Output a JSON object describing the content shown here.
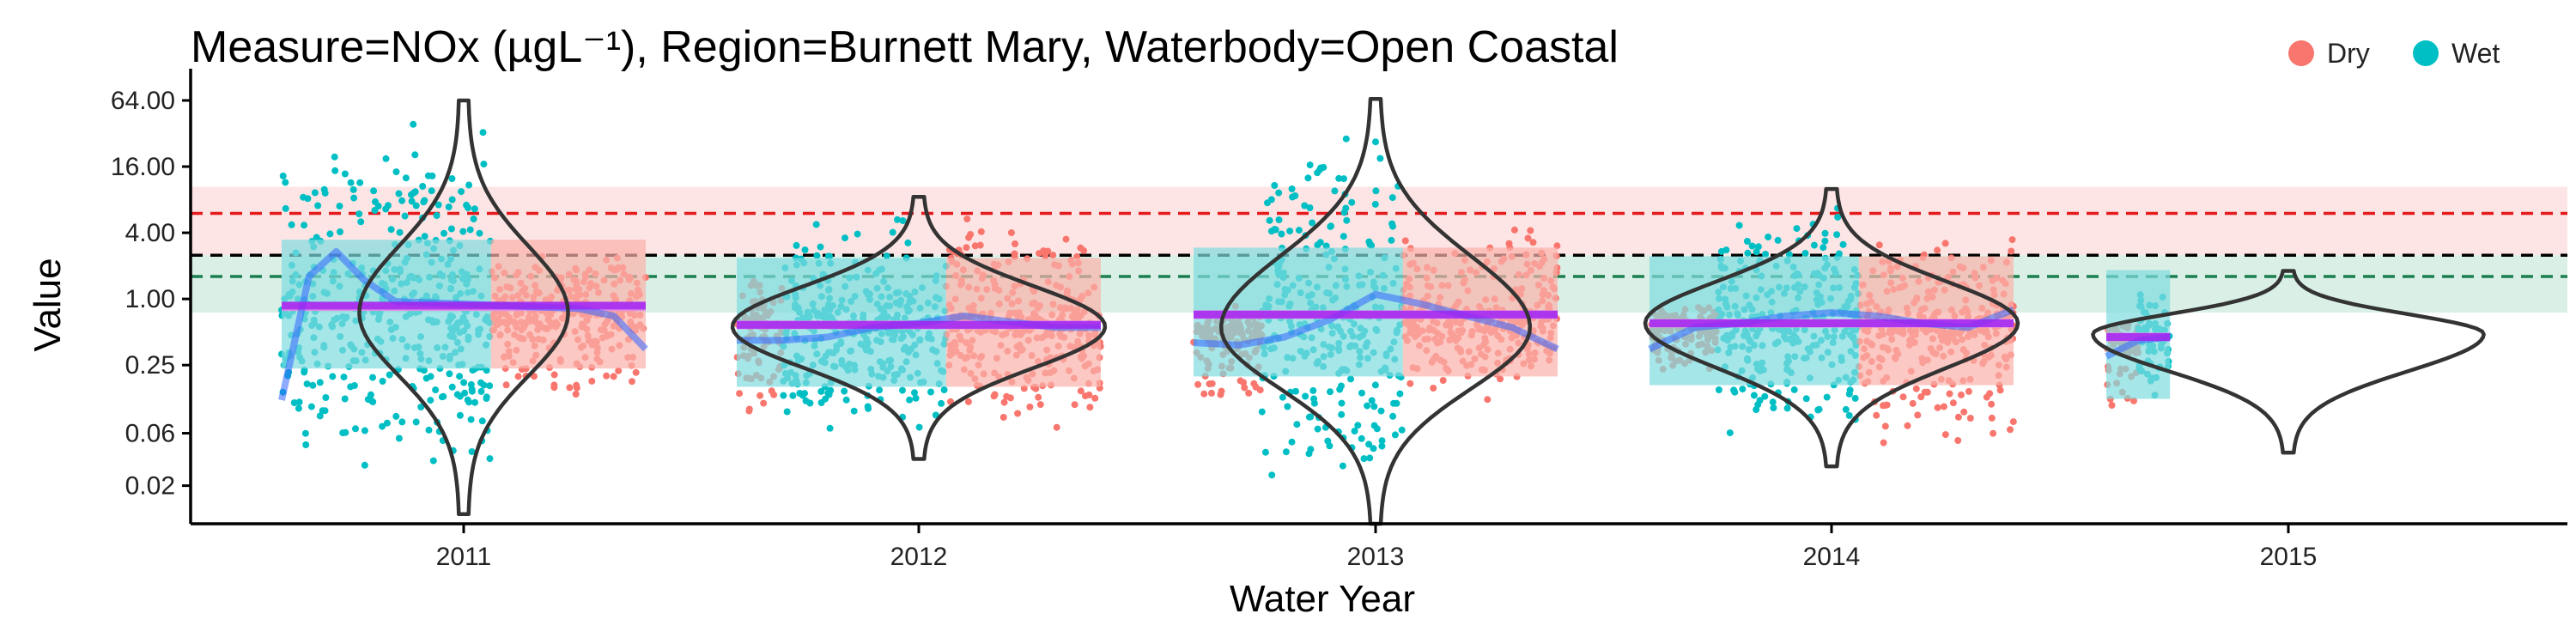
{
  "chart_data": {
    "type": "scatter",
    "title": "Measure=NOx (µgL⁻¹), Region=Burnett Mary, Waterbody=Open Coastal",
    "xlabel": "Water Year",
    "ylabel": "Value",
    "y_scale": "log",
    "y_ticks": [
      0.02,
      0.06,
      0.25,
      1.0,
      4.0,
      16.0,
      64.0
    ],
    "y_tick_labels": [
      "0.02",
      "0.06",
      "0.25",
      "1.00",
      "4.00",
      "16.00",
      "64.00"
    ],
    "ylim": [
      0.009,
      95
    ],
    "x_categories": [
      "2011",
      "2012",
      "2013",
      "2014",
      "2015"
    ],
    "legend": {
      "position": "top-right",
      "entries": [
        {
          "label": "Dry",
          "color": "#F8766D"
        },
        {
          "label": "Wet",
          "color": "#00BFC4"
        }
      ]
    },
    "guidelines": [
      {
        "value": 6.0,
        "color": "#E41A1C",
        "style": "dashed"
      },
      {
        "value": 2.5,
        "color": "#000000",
        "style": "dashed"
      },
      {
        "value": 1.6,
        "color": "#1B7E4F",
        "style": "dashed"
      }
    ],
    "bands": [
      {
        "from": 2.5,
        "to": 10.5,
        "color": "#FDE0E0"
      },
      {
        "from": 0.75,
        "to": 2.5,
        "color": "#D4EDE2"
      }
    ],
    "years": [
      {
        "year": "2011",
        "annual_mean": 0.87,
        "season_spans": [
          {
            "season": "Wet",
            "from": -0.4,
            "to": 0.06,
            "median": 0.85
          },
          {
            "season": "Dry",
            "from": 0.06,
            "to": 0.4,
            "median": 0.85
          }
        ],
        "trend": [
          [
            -0.4,
            0.12
          ],
          [
            -0.34,
            1.6
          ],
          [
            -0.28,
            2.7
          ],
          [
            -0.22,
            1.5
          ],
          [
            -0.15,
            0.95
          ],
          [
            0.0,
            0.9
          ],
          [
            0.15,
            0.85
          ],
          [
            0.25,
            0.82
          ],
          [
            0.33,
            0.7
          ],
          [
            0.4,
            0.35
          ]
        ],
        "violin": {
          "min": 0.011,
          "max": 64,
          "peak": 0.75,
          "peak_halfwidth": 0.22
        },
        "scatter": [
          {
            "season": "Wet",
            "t0": -0.4,
            "t1": 0.06,
            "low": 0.015,
            "high": 64
          },
          {
            "season": "Dry",
            "t0": 0.06,
            "t1": 0.4,
            "low": 0.1,
            "high": 3.2
          }
        ]
      },
      {
        "year": "2012",
        "annual_mean": 0.58,
        "season_spans": [
          {
            "season": "Wet",
            "from": -0.4,
            "to": 0.06,
            "median": 0.58
          },
          {
            "season": "Dry",
            "from": 0.06,
            "to": 0.4,
            "median": 0.58
          }
        ],
        "trend": [
          [
            -0.4,
            0.42
          ],
          [
            -0.3,
            0.42
          ],
          [
            -0.2,
            0.45
          ],
          [
            -0.1,
            0.55
          ],
          [
            0.0,
            0.6
          ],
          [
            0.1,
            0.7
          ],
          [
            0.2,
            0.62
          ],
          [
            0.3,
            0.55
          ],
          [
            0.4,
            0.55
          ]
        ],
        "violin": {
          "min": 0.035,
          "max": 8.5,
          "peak": 0.56,
          "peak_halfwidth": 0.4
        },
        "scatter": [
          {
            "season": "Dry",
            "t0": -0.4,
            "t1": -0.3,
            "low": 0.06,
            "high": 2.5
          },
          {
            "season": "Wet",
            "t0": -0.3,
            "t1": 0.06,
            "low": 0.04,
            "high": 8.0
          },
          {
            "season": "Dry",
            "t0": 0.06,
            "t1": 0.4,
            "low": 0.05,
            "high": 8.0
          }
        ]
      },
      {
        "year": "2013",
        "annual_mean": 0.72,
        "season_spans": [
          {
            "season": "Wet",
            "from": -0.4,
            "to": 0.06,
            "median": 0.72
          },
          {
            "season": "Dry",
            "from": 0.06,
            "to": 0.4,
            "median": 0.72
          }
        ],
        "trend": [
          [
            -0.4,
            0.4
          ],
          [
            -0.3,
            0.38
          ],
          [
            -0.2,
            0.45
          ],
          [
            -0.1,
            0.65
          ],
          [
            0.0,
            1.1
          ],
          [
            0.1,
            0.9
          ],
          [
            0.2,
            0.7
          ],
          [
            0.3,
            0.55
          ],
          [
            0.4,
            0.35
          ]
        ],
        "violin": {
          "min": 0.009,
          "max": 66,
          "peak": 0.55,
          "peak_halfwidth": 0.33
        },
        "scatter": [
          {
            "season": "Dry",
            "t0": -0.4,
            "t1": -0.25,
            "low": 0.1,
            "high": 1.0
          },
          {
            "season": "Wet",
            "t0": -0.25,
            "t1": 0.06,
            "low": 0.009,
            "high": 64
          },
          {
            "season": "Dry",
            "t0": 0.06,
            "t1": 0.4,
            "low": 0.1,
            "high": 6.0
          }
        ]
      },
      {
        "year": "2014",
        "annual_mean": 0.6,
        "season_spans": [
          {
            "season": "Wet",
            "from": -0.4,
            "to": 0.06,
            "median": 0.6
          },
          {
            "season": "Dry",
            "from": 0.06,
            "to": 0.4,
            "median": 0.6
          }
        ],
        "trend": [
          [
            -0.4,
            0.35
          ],
          [
            -0.3,
            0.55
          ],
          [
            -0.2,
            0.6
          ],
          [
            -0.1,
            0.7
          ],
          [
            0.0,
            0.75
          ],
          [
            0.1,
            0.7
          ],
          [
            0.2,
            0.6
          ],
          [
            0.3,
            0.55
          ],
          [
            0.4,
            0.8
          ]
        ],
        "violin": {
          "min": 0.03,
          "max": 10,
          "peak": 0.6,
          "peak_halfwidth": 0.4
        },
        "scatter": [
          {
            "season": "Dry",
            "t0": -0.4,
            "t1": -0.25,
            "low": 0.2,
            "high": 1.0
          },
          {
            "season": "Wet",
            "t0": -0.25,
            "t1": 0.06,
            "low": 0.04,
            "high": 10
          },
          {
            "season": "Dry",
            "t0": 0.06,
            "t1": 0.4,
            "low": 0.03,
            "high": 5.0
          }
        ]
      },
      {
        "year": "2015",
        "annual_mean": 0.45,
        "season_spans": [
          {
            "season": "Wet",
            "from": -0.4,
            "to": -0.26,
            "median": 0.45
          }
        ],
        "trend": [
          [
            -0.4,
            0.3
          ],
          [
            -0.33,
            0.42
          ],
          [
            -0.26,
            0.45
          ]
        ],
        "violin": {
          "min": 0.04,
          "max": 1.8,
          "peak": 0.48,
          "peak_halfwidth": 0.42
        },
        "scatter": [
          {
            "season": "Dry",
            "t0": -0.4,
            "t1": -0.33,
            "low": 0.08,
            "high": 0.8
          },
          {
            "season": "Wet",
            "t0": -0.33,
            "t1": -0.26,
            "low": 0.1,
            "high": 1.5
          }
        ]
      }
    ]
  }
}
